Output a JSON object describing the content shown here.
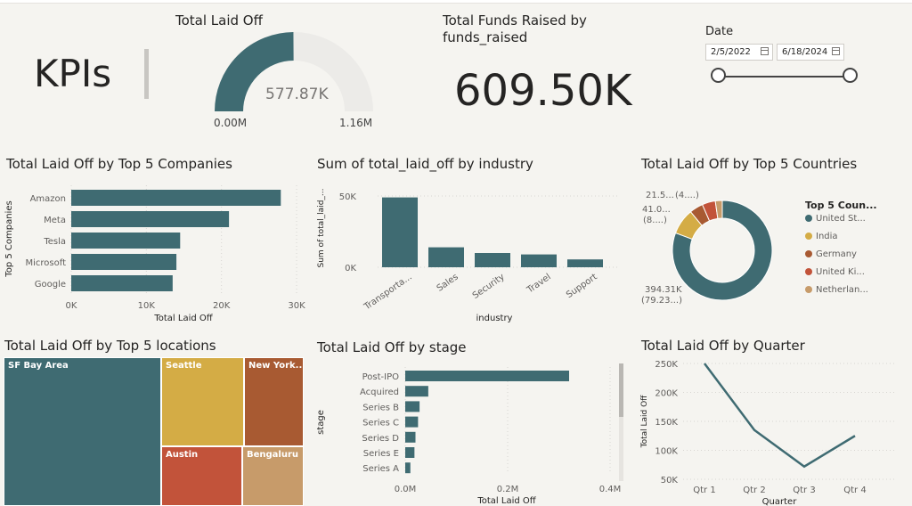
{
  "kpi_title": "KPIs",
  "gauge": {
    "title": "Total Laid Off",
    "value_label": "577.87K",
    "min_label": "0.00M",
    "max_label": "1.16M",
    "fraction": 0.498,
    "color": "#3f6b72",
    "track_color": "#ecebe8"
  },
  "funds": {
    "title_line1": "Total Funds Raised by",
    "title_line2": "funds_raised",
    "value": "609.50K"
  },
  "date_slicer": {
    "label": "Date",
    "start": "2/5/2022",
    "end": "6/18/2024"
  },
  "companies_chart": {
    "title": "Total Laid Off by Top 5 Companies",
    "ylabel": "Top 5 Companies",
    "xlabel": "Total Laid Off",
    "ticks": [
      "0K",
      "10K",
      "20K",
      "30K"
    ]
  },
  "industry_chart": {
    "title": "Sum of total_laid_off by industry",
    "ylabel": "Sum of total_laid_...",
    "xlabel": "industry",
    "ticks": [
      "0K",
      "50K"
    ],
    "tick_labels": [
      "Transporta...",
      "Sales",
      "Security",
      "Travel",
      "Support"
    ]
  },
  "countries_chart": {
    "title": "Total Laid Off by Top 5 Countries",
    "legend_title": "Top 5 Coun...",
    "legend": [
      "United St...",
      "India",
      "Germany",
      "United Ki...",
      "Netherlan..."
    ],
    "labels": {
      "a": "21.5...",
      "b": "(4....)",
      "c": "41.0...",
      "d": "(8....)",
      "e": "394.31K",
      "f": "(79.23...)"
    }
  },
  "locations_chart": {
    "title": "Total Laid Off by Top 5 locations",
    "cells": [
      "SF Bay Area",
      "Seattle",
      "New York...",
      "Austin",
      "Bengaluru"
    ]
  },
  "stage_chart": {
    "title": "Total Laid Off by stage",
    "ylabel": "stage",
    "xlabel": "Total Laid Off",
    "ticks": [
      "0.0M",
      "0.2M",
      "0.4M"
    ]
  },
  "quarter_chart": {
    "title": "Total Laid Off by Quarter",
    "ylabel": "Total Laid Off",
    "xlabel": "Quarter",
    "ticks": [
      "50K",
      "100K",
      "150K",
      "200K",
      "250K"
    ]
  },
  "chart_data": [
    {
      "type": "bar",
      "orientation": "horizontal",
      "categories": [
        "Amazon",
        "Meta",
        "Tesla",
        "Microsoft",
        "Google"
      ],
      "values": [
        27900,
        21000,
        14500,
        14000,
        13500
      ],
      "title": "Total Laid Off by Top 5 Companies",
      "xlabel": "Total Laid Off",
      "ylabel": "Top 5 Companies",
      "xlim": [
        0,
        30000
      ],
      "color": "#3f6b72"
    },
    {
      "type": "bar",
      "categories": [
        "Transporta...",
        "Sales",
        "Security",
        "Travel",
        "Support"
      ],
      "values": [
        49000,
        14000,
        10000,
        9000,
        5500
      ],
      "title": "Sum of total_laid_off by industry",
      "xlabel": "industry",
      "ylabel": "Sum of total_laid_...",
      "ylim": [
        0,
        55000
      ],
      "color": "#3f6b72"
    },
    {
      "type": "pie",
      "donut": true,
      "categories": [
        "United St...",
        "India",
        "Germany",
        "United Ki...",
        "Netherlan..."
      ],
      "values": [
        394310,
        41000,
        21500,
        21000,
        11000
      ],
      "colors": [
        "#3f6b72",
        "#d4ac45",
        "#a85a32",
        "#c2533a",
        "#c79b6a"
      ],
      "title": "Total Laid Off by Top 5 Countries"
    },
    {
      "type": "treemap",
      "categories": [
        "SF Bay Area",
        "Seattle",
        "New York...",
        "Austin",
        "Bengaluru"
      ],
      "colors": [
        "#3f6b72",
        "#d4ac45",
        "#a85a32",
        "#c2533a",
        "#c79b6a"
      ],
      "title": "Total Laid Off by Top 5 locations"
    },
    {
      "type": "bar",
      "orientation": "horizontal",
      "categories": [
        "Post-IPO",
        "Acquired",
        "Series B",
        "Series C",
        "Series D",
        "Series E",
        "Series A"
      ],
      "values": [
        320000,
        45000,
        28000,
        25000,
        20000,
        18000,
        10000
      ],
      "title": "Total Laid Off by stage",
      "xlabel": "Total Laid Off",
      "ylabel": "stage",
      "xlim": [
        0,
        400000
      ],
      "color": "#3f6b72"
    },
    {
      "type": "line",
      "categories": [
        "Qtr 1",
        "Qtr 2",
        "Qtr 3",
        "Qtr 4"
      ],
      "values": [
        250000,
        135000,
        72000,
        125000
      ],
      "title": "Total Laid Off by Quarter",
      "xlabel": "Quarter",
      "ylabel": "Total Laid Off",
      "ylim": [
        50000,
        250000
      ],
      "color": "#3f6b72"
    }
  ]
}
